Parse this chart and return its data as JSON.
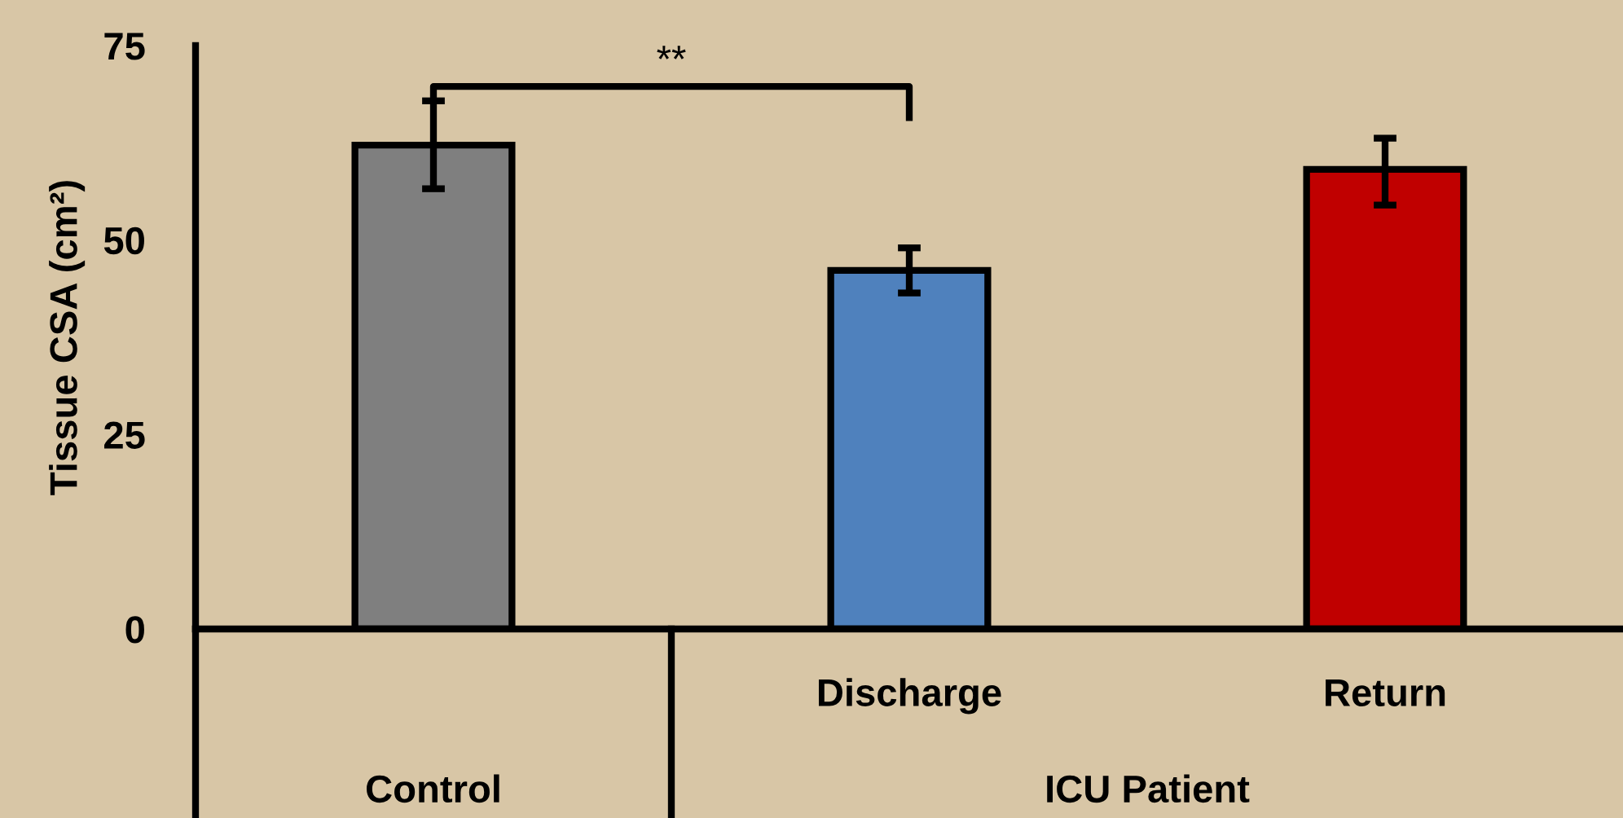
{
  "chart_data": {
    "type": "bar",
    "ylabel": "Tissue CSA (cm²)",
    "categories": [
      null,
      "Discharge",
      "Return"
    ],
    "values": [
      62.2,
      46.1,
      59.1
    ],
    "errors": [
      [
        56.6,
        67.9
      ],
      [
        43.2,
        49.0
      ],
      [
        54.5,
        63.1
      ]
    ],
    "colors": [
      "#7f7f7f",
      "#4f81bd",
      "#c00000"
    ],
    "ylim": [
      0,
      75
    ],
    "yticks": [
      0,
      25,
      50,
      75
    ],
    "grid": false,
    "annotations": [
      "**",
      "Control",
      "ICU Patient"
    ]
  }
}
